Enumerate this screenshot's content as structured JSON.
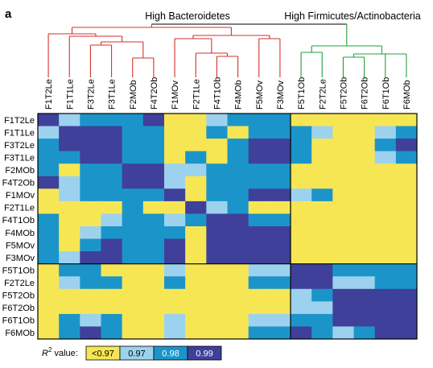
{
  "panel_label": "a",
  "group_labels": {
    "high_bacteroidetes": "High Bacteroidetes",
    "high_firmicutes": "High Firmicutes/Actinobacteria"
  },
  "colors": {
    "bacteroidetes_tree": "#d3312a",
    "firmicutes_tree": "#22a03c",
    "lt_097": "#f7e654",
    "v097": "#9dd2ef",
    "v098": "#1b95c9",
    "v099": "#3f409a"
  },
  "chart_data": {
    "type": "heatmap",
    "title": "",
    "columns": [
      "F1T2Le",
      "F1T1Le",
      "F3T2Le",
      "F3T1Le",
      "F2MOb",
      "F4T2Ob",
      "F1MOv",
      "F2T1Le",
      "F4T1Ob",
      "F4MOb",
      "F5MOv",
      "F3MOv",
      "F5T1Ob",
      "F2T2Le",
      "F5T2Ob",
      "F6T2Ob",
      "F6T1Ob",
      "F6MOb"
    ],
    "rows": [
      "F1T2Le",
      "F1T1Le",
      "F3T2Le",
      "F3T1Le",
      "F2MOb",
      "F4T2Ob",
      "F1MOv",
      "F2T1Le",
      "F4T1Ob",
      "F4MOb",
      "F5MOv",
      "F3MOv",
      "F5T1Ob",
      "F2T2Le",
      "F5T2Ob",
      "F6T2Ob",
      "F6T1Ob",
      "F6MOb"
    ],
    "value_classes": [
      "<0.97",
      "0.97",
      "0.98",
      "0.99"
    ],
    "matrix": [
      [
        3,
        1,
        2,
        2,
        2,
        3,
        0,
        0,
        1,
        2,
        2,
        2,
        0,
        0,
        0,
        0,
        0,
        0
      ],
      [
        1,
        3,
        3,
        3,
        2,
        2,
        0,
        0,
        2,
        0,
        2,
        2,
        2,
        1,
        0,
        0,
        1,
        2
      ],
      [
        2,
        3,
        3,
        3,
        2,
        2,
        0,
        0,
        0,
        2,
        3,
        3,
        2,
        0,
        0,
        0,
        2,
        3
      ],
      [
        2,
        2,
        3,
        3,
        2,
        2,
        0,
        2,
        0,
        2,
        3,
        3,
        2,
        0,
        0,
        0,
        1,
        2
      ],
      [
        2,
        0,
        2,
        2,
        3,
        3,
        1,
        1,
        2,
        2,
        2,
        2,
        0,
        0,
        0,
        0,
        0,
        0
      ],
      [
        3,
        1,
        2,
        2,
        3,
        3,
        1,
        0,
        2,
        2,
        2,
        2,
        0,
        0,
        0,
        0,
        0,
        0
      ],
      [
        0,
        1,
        2,
        2,
        2,
        2,
        3,
        0,
        2,
        2,
        3,
        3,
        1,
        2,
        0,
        0,
        0,
        0
      ],
      [
        0,
        0,
        0,
        0,
        2,
        0,
        0,
        3,
        1,
        2,
        0,
        0,
        0,
        0,
        0,
        0,
        0,
        0
      ],
      [
        2,
        0,
        0,
        1,
        2,
        2,
        1,
        2,
        3,
        3,
        2,
        2,
        0,
        0,
        0,
        0,
        0,
        0
      ],
      [
        2,
        0,
        1,
        2,
        2,
        2,
        2,
        0,
        3,
        3,
        3,
        3,
        0,
        0,
        0,
        0,
        0,
        0
      ],
      [
        2,
        0,
        2,
        3,
        2,
        2,
        3,
        0,
        3,
        3,
        3,
        3,
        0,
        0,
        0,
        0,
        0,
        0
      ],
      [
        2,
        1,
        3,
        3,
        2,
        2,
        3,
        0,
        3,
        3,
        3,
        3,
        0,
        0,
        0,
        0,
        0,
        0
      ],
      [
        0,
        2,
        2,
        0,
        0,
        0,
        1,
        0,
        0,
        0,
        1,
        1,
        3,
        3,
        2,
        2,
        2,
        2
      ],
      [
        0,
        1,
        2,
        2,
        0,
        0,
        2,
        0,
        0,
        0,
        2,
        2,
        3,
        3,
        1,
        1,
        2,
        2
      ],
      [
        0,
        0,
        0,
        0,
        0,
        0,
        0,
        0,
        0,
        0,
        0,
        0,
        1,
        2,
        3,
        3,
        3,
        3
      ],
      [
        0,
        0,
        0,
        0,
        0,
        0,
        0,
        0,
        0,
        0,
        0,
        0,
        1,
        1,
        3,
        3,
        3,
        3
      ],
      [
        0,
        2,
        1,
        2,
        0,
        0,
        1,
        0,
        0,
        0,
        1,
        1,
        2,
        2,
        3,
        3,
        3,
        3
      ],
      [
        0,
        2,
        3,
        2,
        0,
        0,
        1,
        0,
        0,
        0,
        2,
        2,
        3,
        2,
        1,
        2,
        3,
        3
      ]
    ],
    "clusters": {
      "bacteroidetes_count": 12,
      "firmicutes_count": 6
    },
    "legend": {
      "label_prefix": "R",
      "label_sup": "2",
      "label_suffix": " value:",
      "entries": [
        "<0.97",
        "0.97",
        "0.98",
        "0.99"
      ]
    }
  }
}
